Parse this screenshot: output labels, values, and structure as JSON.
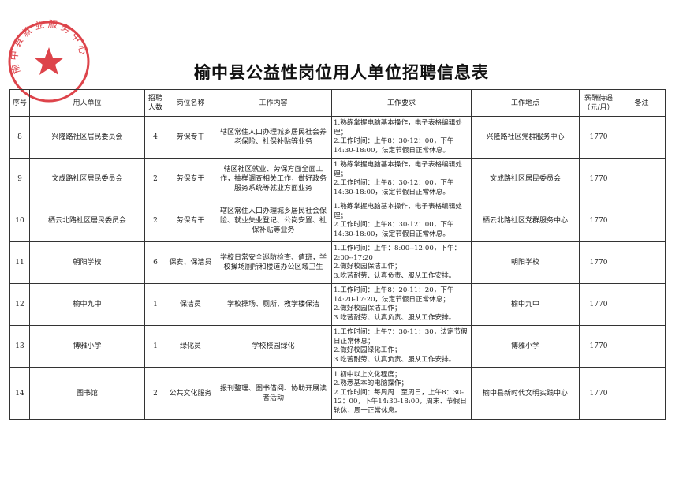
{
  "title": "榆中县公益性岗位用人单位招聘信息表",
  "stamp": {
    "text": "榆中县就业服务中心",
    "color": "#d8242c"
  },
  "table": {
    "headers": [
      "序号",
      "用人单位",
      "招聘人数",
      "岗位名称",
      "工作内容",
      "工作要求",
      "工作地点",
      "薪酬待遇（元/月）",
      "备注"
    ],
    "rows": [
      {
        "no": "8",
        "unit": "兴隆路社区居民委员会",
        "count": "4",
        "post": "劳保专干",
        "content": "辖区常住人口办理城乡居民社会养老保险、社保补贴等业务",
        "req": "1.熟练掌握电脑基本操作，电子表格编辑处理；\n2.工作时间：上午8：30-12：00，下午14:30-18:00，法定节假日正常休息。",
        "place": "兴隆路社区党群服务中心",
        "pay": "1770",
        "note": ""
      },
      {
        "no": "9",
        "unit": "文成路社区居民委员会",
        "count": "2",
        "post": "劳保专干",
        "content": "辖区社区就业、劳保方面全面工作，抽样调查相关工作，做好政务服务系统等就业方面业务",
        "req": "1.熟练掌握电脑基本操作，电子表格编辑处理；\n2.工作时间：上午8：30-12：00，下午14:30-18:00，法定节假日正常休息。",
        "place": "文成路社区居民委员会",
        "pay": "1770",
        "note": ""
      },
      {
        "no": "10",
        "unit": "栖云北路社区居民委员会",
        "count": "2",
        "post": "劳保专干",
        "content": "辖区常住人口办理城乡居民社会保险、就业失业登记、公岗安置、社保补贴等业务",
        "req": "1.熟练掌握电脑基本操作，电子表格编辑处理；\n2.工作时间：上午8：30-12：00，下午14:30-18:00，法定节假日正常休息。",
        "place": "栖云北路社区党群服务中心",
        "pay": "1770",
        "note": ""
      },
      {
        "no": "11",
        "unit": "朝阳学校",
        "count": "6",
        "post": "保安、保洁员",
        "content": "学校日常安全巡防检查、值班，学校操场厕所和楼道办公区域卫生",
        "req": "1.工作时间：上午：8:00--12:00，下午：2:00--17:20\n2.做好校园保洁工作；\n3.吃苦耐劳、认真负责、服从工作安排。",
        "place": "朝阳学校",
        "pay": "1770",
        "note": ""
      },
      {
        "no": "12",
        "unit": "榆中九中",
        "count": "1",
        "post": "保洁员",
        "content": "学校操场、厕所、教学楼保洁",
        "req": "1.工作时间：上午8：20-11：20，下午14:20-17:20，法定节假日正常休息；\n2.做好校园保洁工作；\n3.吃苦耐劳、认真负责、服从工作安排。",
        "place": "榆中九中",
        "pay": "1770",
        "note": ""
      },
      {
        "no": "13",
        "unit": "博雅小学",
        "count": "1",
        "post": "绿化员",
        "content": "学校校园绿化",
        "req": "1.工作时间：上午7：30-11：30，法定节假日正常休息；\n2.做好校园绿化工作；\n3.吃苦耐劳、认真负责、服从工作安排。",
        "place": "博雅小学",
        "pay": "1770",
        "note": ""
      },
      {
        "no": "14",
        "unit": "图书馆",
        "count": "2",
        "post": "公共文化服务",
        "content": "报刊整理、图书借阅、协助开展读者活动",
        "req": "1.初中以上文化程度；\n2.熟悉基本的电脑操作；\n2.工作时间：每周周二至周日，上午8：30-12：00，下午14:30-18:00，周末、节假日轮休，周一正常休息。",
        "place": "榆中县新时代文明实践中心",
        "pay": "1770",
        "note": ""
      }
    ]
  }
}
